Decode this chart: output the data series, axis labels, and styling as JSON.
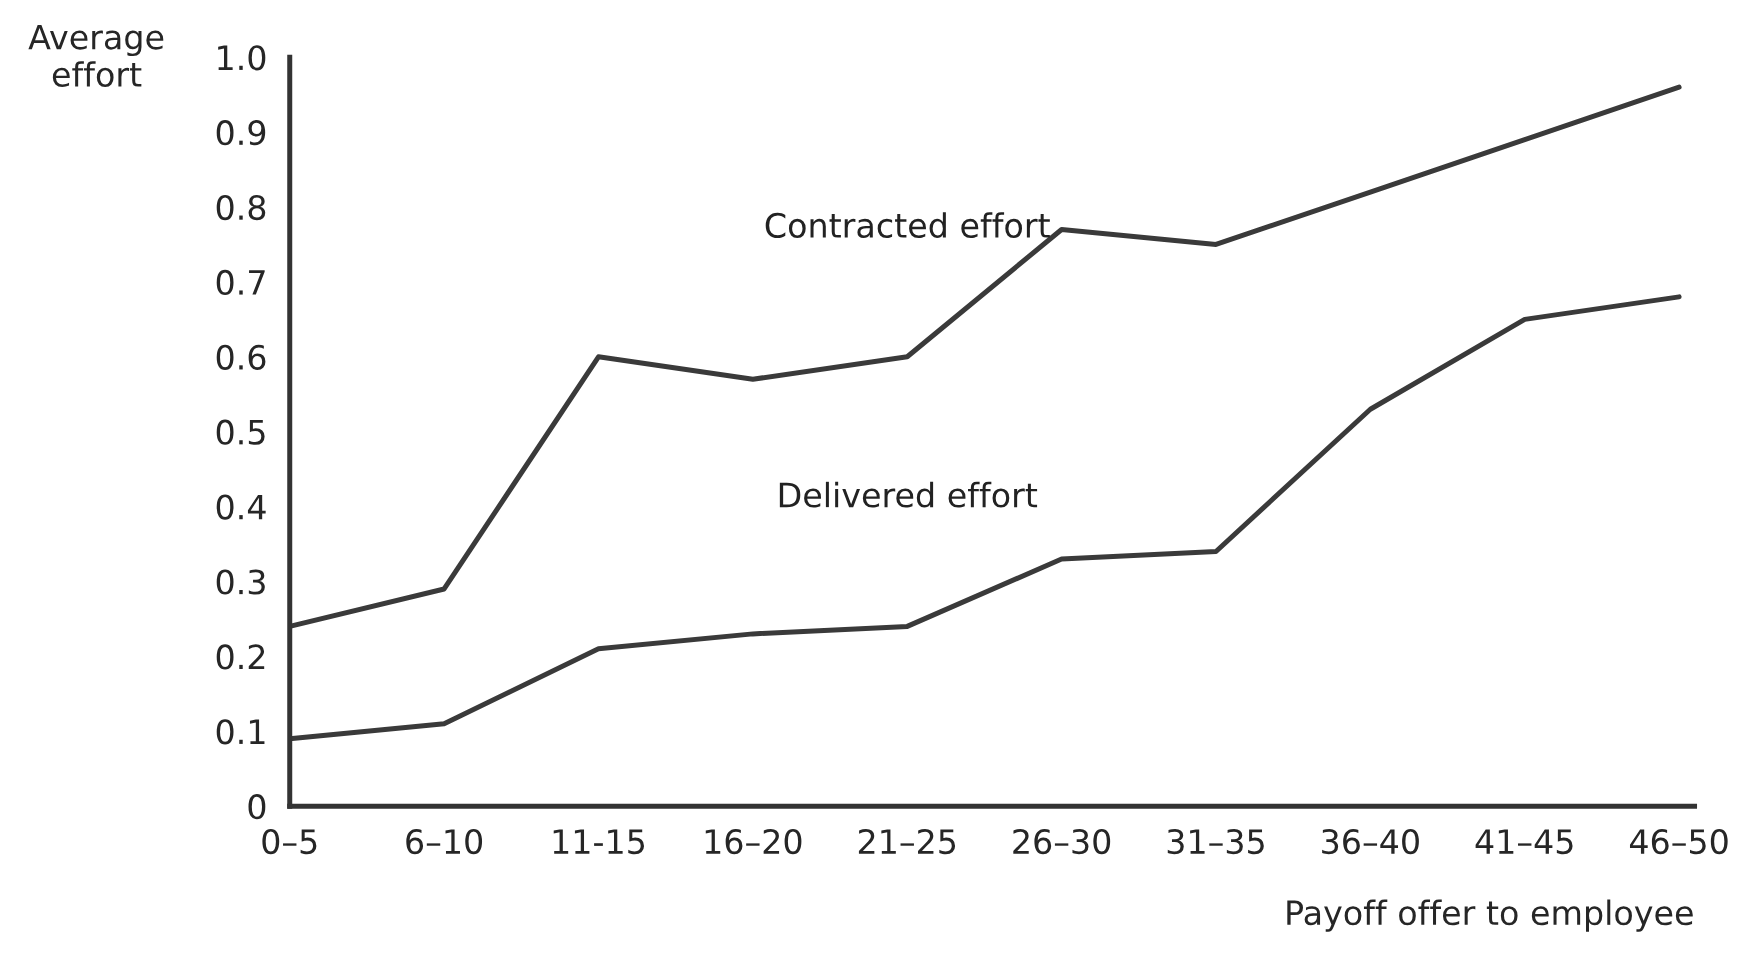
{
  "chart_data": {
    "type": "line",
    "xlabel": "Payoff offer to employee",
    "ylabel": "Average\neffort",
    "categories": [
      "0–5",
      "6–10",
      "11-15",
      "16–20",
      "21–25",
      "26–30",
      "31–35",
      "36–40",
      "41–45",
      "46–50"
    ],
    "series": [
      {
        "name": "Contracted effort",
        "color": "#3a3a3a",
        "values": [
          0.24,
          0.29,
          0.6,
          0.57,
          0.6,
          0.77,
          0.75,
          0.82,
          0.89,
          0.96
        ]
      },
      {
        "name": "Delivered effort",
        "color": "#3a3a3a",
        "values": [
          0.09,
          0.11,
          0.21,
          0.23,
          0.24,
          0.33,
          0.34,
          0.53,
          0.65,
          0.68
        ]
      }
    ],
    "ylim": [
      0,
      1.0
    ],
    "yticks": [
      0,
      0.1,
      0.2,
      0.3,
      0.4,
      0.5,
      0.6,
      0.7,
      0.8,
      0.9,
      {
        "value": 1.0,
        "label": "1.0"
      }
    ],
    "grid": false,
    "legend": false,
    "marker": "none",
    "line_style": "solid"
  }
}
